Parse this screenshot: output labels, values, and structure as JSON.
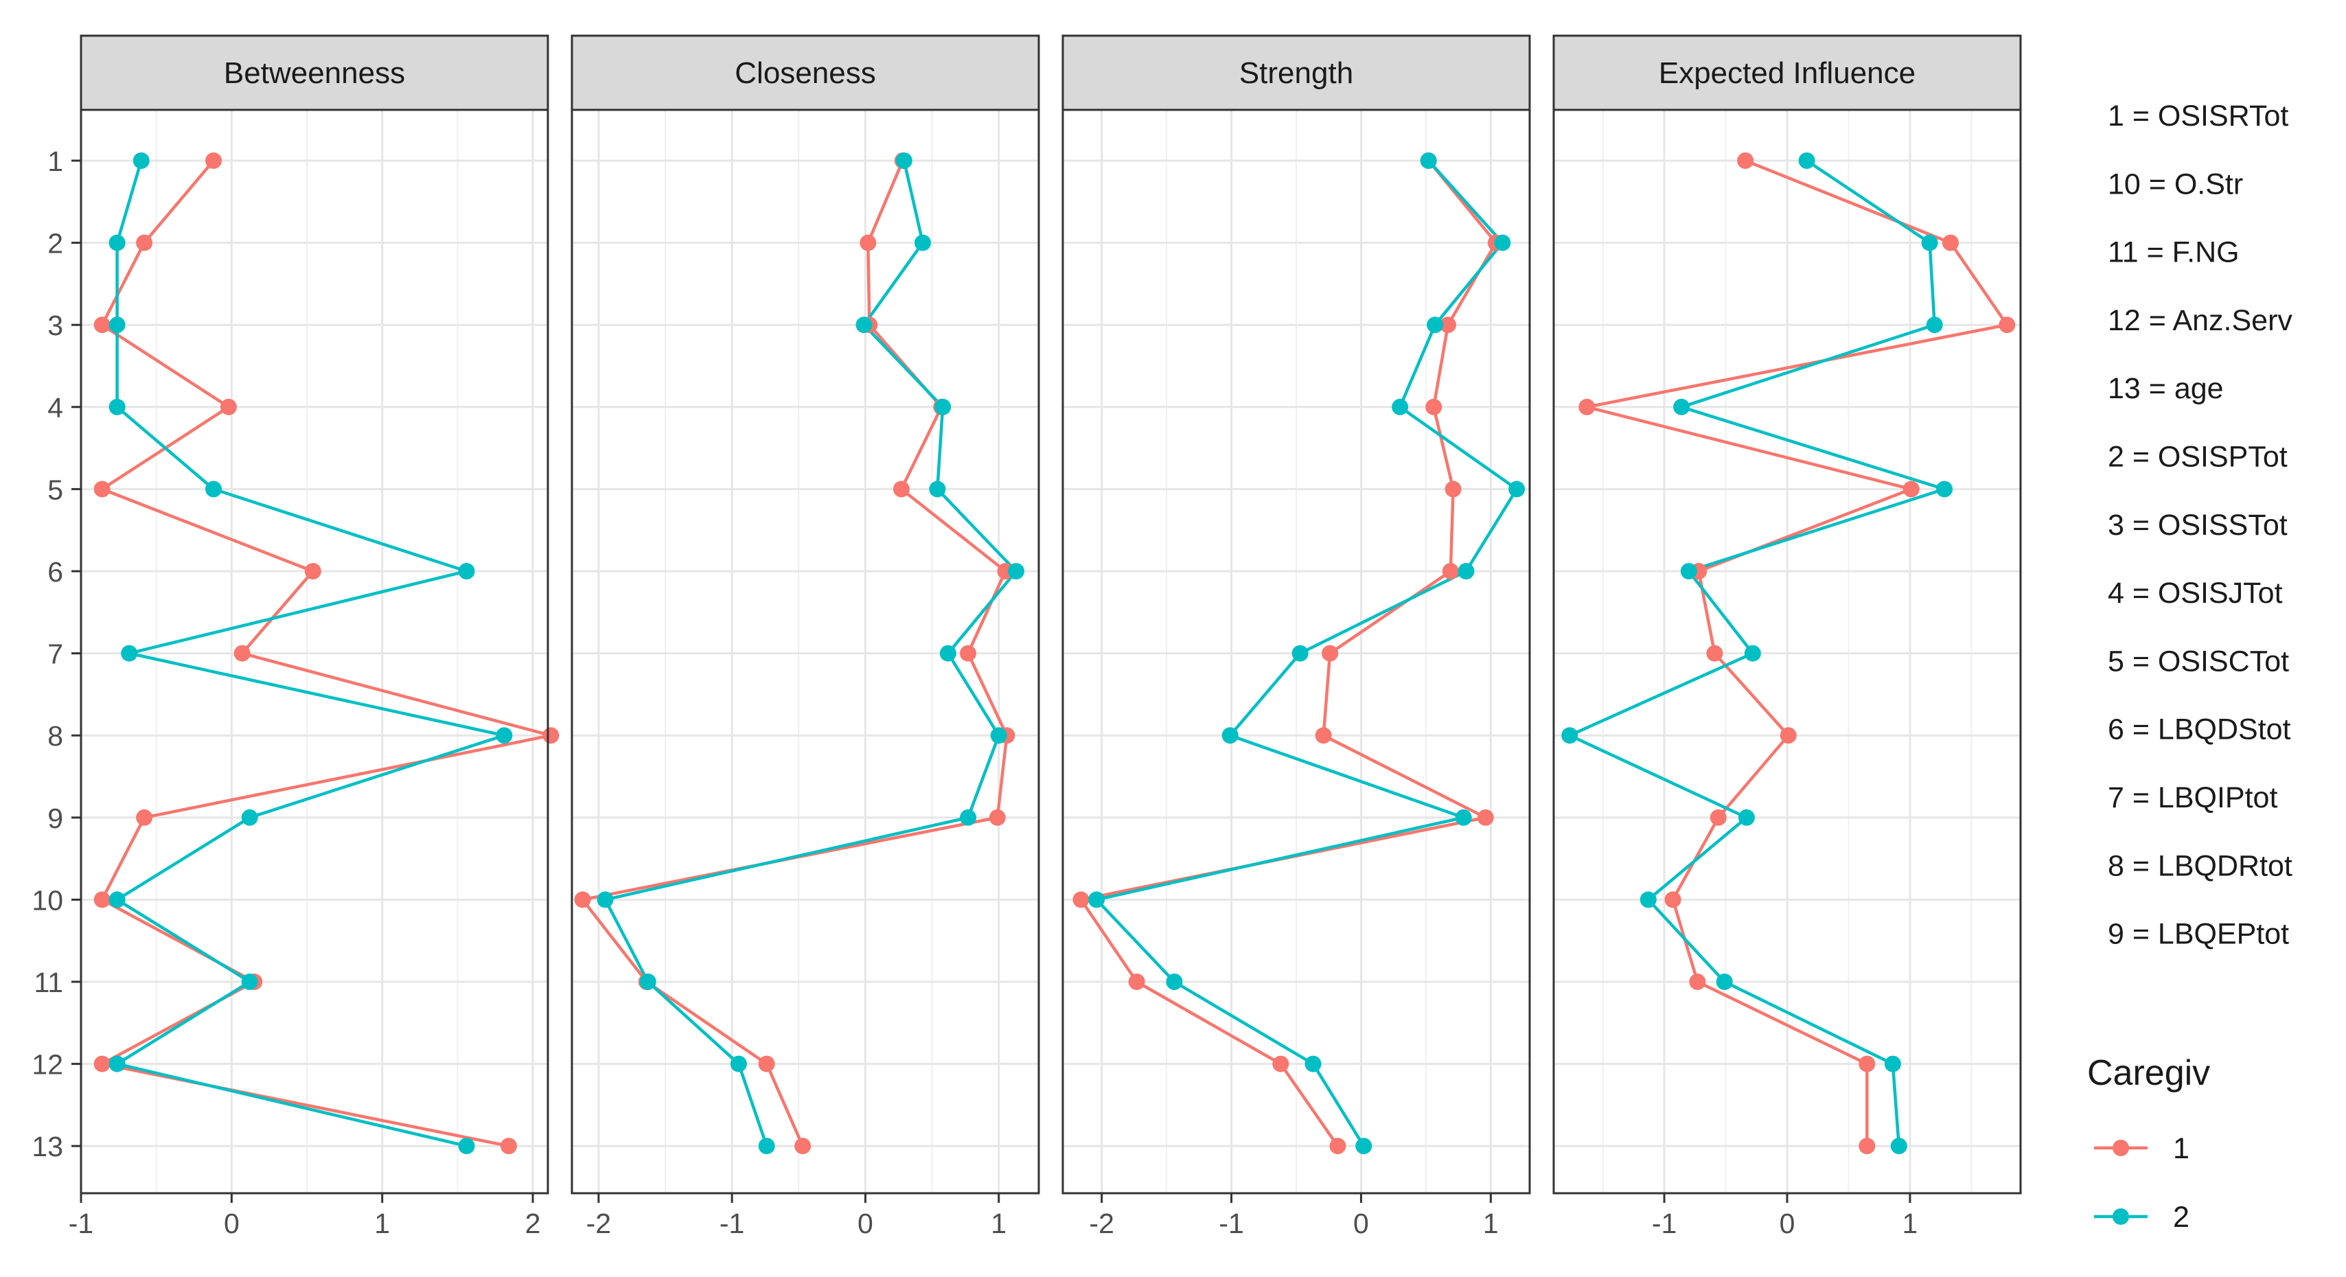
{
  "chart_data": {
    "type": "line",
    "orientation": "horizontal-values-vertical-categories",
    "facets": [
      "Betweenness",
      "Closeness",
      "Strength",
      "Expected Influence"
    ],
    "categories": [
      "1",
      "2",
      "3",
      "4",
      "5",
      "6",
      "7",
      "8",
      "9",
      "10",
      "11",
      "12",
      "13"
    ],
    "xlims": [
      [
        -1,
        2.1
      ],
      [
        -2.2,
        1.3
      ],
      [
        -2.3,
        1.3
      ],
      [
        -1.9,
        1.9
      ]
    ],
    "xticks": [
      [
        -1,
        0,
        1,
        2
      ],
      [
        -2,
        -1,
        0,
        1
      ],
      [
        -2,
        -1,
        0,
        1
      ],
      [
        -1,
        0,
        1
      ]
    ],
    "legend": {
      "title": "Caregiv",
      "position": "right",
      "entries": [
        {
          "name": "1",
          "color": "#F8766D"
        },
        {
          "name": "2",
          "color": "#00BFC4"
        }
      ]
    },
    "key_labels": [
      "1 = OSISRTot",
      "10 = O.Str",
      "11 = F.NG",
      "12 = Anz.Serv",
      "13 = age",
      "2 = OSISPTot",
      "3 = OSISSTot",
      "4 = OSISJTot",
      "5 = OSISCTot",
      "6 = LBQDStot",
      "7 = LBQIPtot",
      "8 = LBQDRtot",
      "9 = LBQEPtot"
    ],
    "series": [
      {
        "name": "1",
        "color": "#F8766D",
        "values": {
          "Betweenness": [
            -0.12,
            -0.58,
            -0.86,
            -0.02,
            -0.86,
            0.54,
            0.07,
            2.12,
            -0.58,
            -0.86,
            0.15,
            -0.86,
            1.84
          ],
          "Closeness": [
            0.28,
            0.02,
            0.03,
            0.57,
            0.27,
            1.05,
            0.77,
            1.06,
            0.99,
            -2.12,
            -1.64,
            -0.74,
            -0.47
          ],
          "Strength": [
            0.52,
            1.04,
            0.67,
            0.56,
            0.71,
            0.69,
            -0.24,
            -0.29,
            0.96,
            -2.16,
            -1.73,
            -0.62,
            -0.18
          ],
          "Expected Influence": [
            -0.34,
            1.33,
            1.79,
            -1.63,
            1.01,
            -0.72,
            -0.59,
            0.01,
            -0.56,
            -0.93,
            -0.73,
            0.65,
            0.65
          ]
        }
      },
      {
        "name": "2",
        "color": "#00BFC4",
        "values": {
          "Betweenness": [
            -0.6,
            -0.76,
            -0.76,
            -0.76,
            -0.12,
            1.56,
            -0.68,
            1.81,
            0.12,
            -0.76,
            0.12,
            -0.76,
            1.56
          ],
          "Closeness": [
            0.29,
            0.43,
            -0.01,
            0.58,
            0.54,
            1.13,
            0.62,
            1.0,
            0.77,
            -1.95,
            -1.63,
            -0.95,
            -0.74
          ],
          "Strength": [
            0.52,
            1.09,
            0.57,
            0.3,
            1.2,
            0.81,
            -0.47,
            -1.01,
            0.79,
            -2.04,
            -1.44,
            -0.37,
            0.02
          ],
          "Expected Influence": [
            0.16,
            1.16,
            1.2,
            -0.86,
            1.28,
            -0.8,
            -0.28,
            -1.77,
            -0.33,
            -1.13,
            -0.51,
            0.86,
            0.91
          ]
        }
      }
    ]
  }
}
